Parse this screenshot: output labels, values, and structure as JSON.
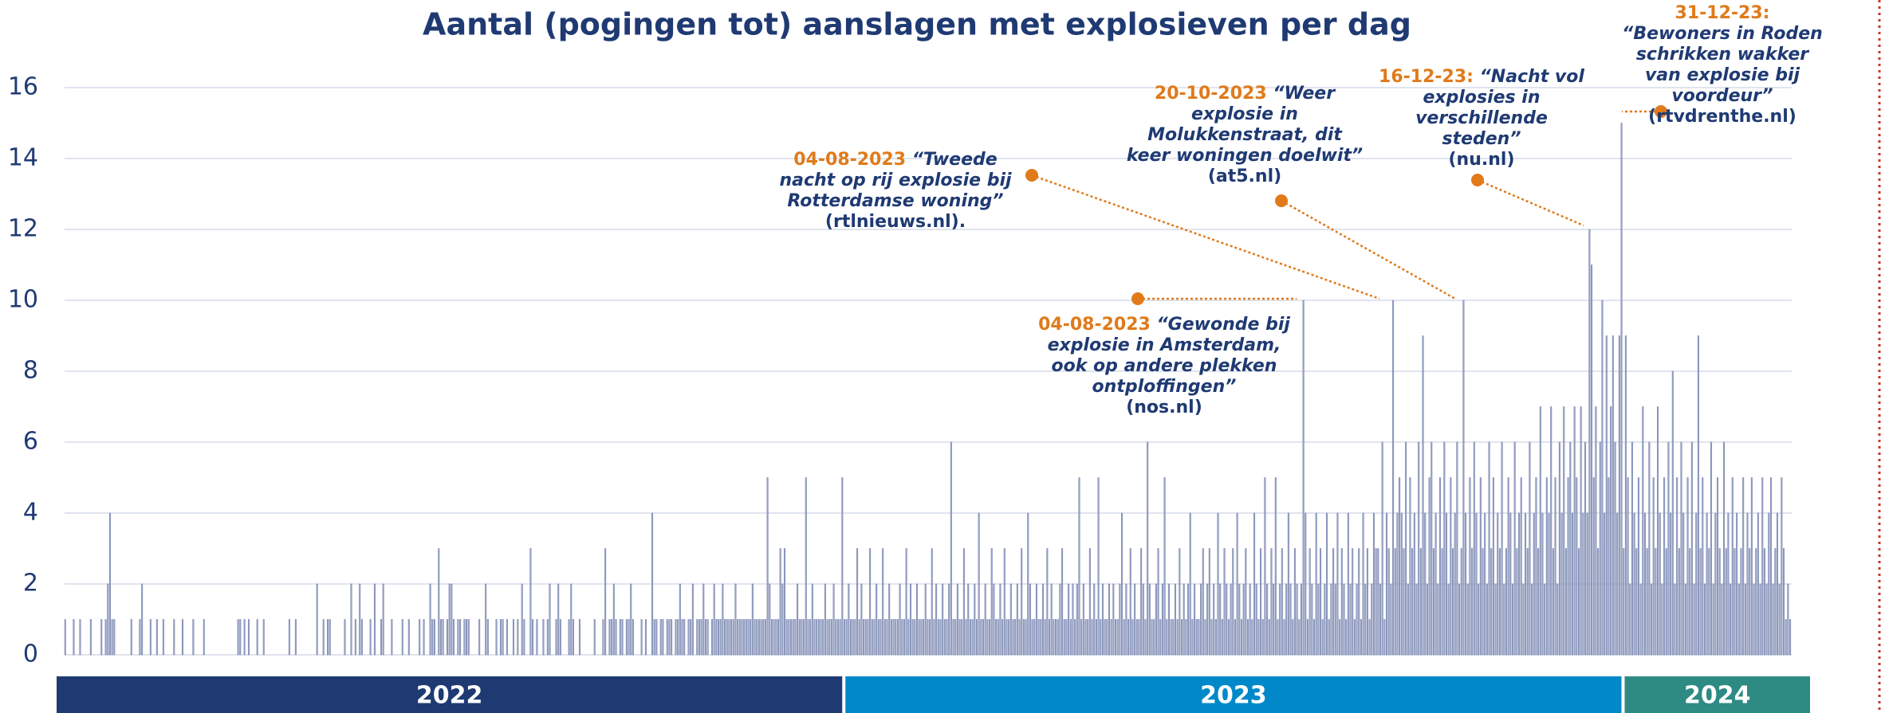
{
  "chart_data": {
    "type": "bar",
    "title": "Aantal (pogingen tot) aanslagen met explosieven per dag",
    "color": "#9aa5c6",
    "ylim": [
      0,
      16
    ],
    "yticks": [
      0,
      2,
      4,
      6,
      8,
      10,
      12,
      14,
      16
    ],
    "grid": true,
    "groups": [
      {
        "label": "2022",
        "color": "#1f3a73",
        "values": [
          1,
          0,
          0,
          0,
          1,
          0,
          0,
          1,
          0,
          0,
          0,
          0,
          1,
          0,
          0,
          0,
          0,
          1,
          0,
          1,
          2,
          4,
          1,
          1,
          0,
          0,
          0,
          0,
          0,
          0,
          0,
          1,
          0,
          0,
          0,
          1,
          2,
          0,
          0,
          0,
          1,
          0,
          0,
          1,
          0,
          0,
          1,
          0,
          0,
          0,
          0,
          1,
          0,
          0,
          0,
          1,
          0,
          0,
          0,
          0,
          1,
          0,
          0,
          0,
          0,
          1,
          0,
          0,
          0,
          0,
          0,
          0,
          0,
          0,
          0,
          0,
          0,
          0,
          0,
          0,
          0,
          1,
          1,
          0,
          1,
          0,
          1,
          0,
          0,
          0,
          1,
          0,
          0,
          1,
          0,
          0,
          0,
          0,
          0,
          0,
          0,
          0,
          0,
          0,
          0,
          1,
          0,
          0,
          1,
          0,
          0,
          0,
          0,
          0,
          0,
          0,
          0,
          0,
          2,
          0,
          0,
          1,
          0,
          1,
          1,
          0,
          0,
          0,
          0,
          0,
          0,
          1,
          0,
          0,
          2,
          0,
          1,
          0,
          2,
          1,
          0,
          0,
          0,
          1,
          0,
          2,
          0,
          0,
          1,
          2,
          0,
          0,
          0,
          1,
          0,
          0,
          0,
          0,
          1,
          0,
          0,
          1,
          0,
          0,
          0,
          0,
          1,
          0,
          1,
          0,
          0,
          2,
          1,
          1,
          0,
          3,
          1,
          1,
          0,
          1,
          2,
          2,
          1,
          0,
          1,
          1,
          0,
          1,
          1,
          1,
          0,
          0,
          0,
          0,
          1,
          0,
          0,
          2,
          1,
          0,
          0,
          0,
          1,
          0,
          1,
          1,
          0,
          1,
          0,
          0,
          1,
          0,
          1,
          0,
          2,
          1,
          0,
          0,
          3,
          1,
          0,
          1,
          0,
          0,
          1,
          0,
          1,
          2,
          0,
          0,
          1,
          2,
          1,
          0,
          0,
          0,
          1,
          2,
          1,
          0,
          0,
          1,
          0,
          0,
          0,
          0,
          0,
          0,
          1,
          0,
          0,
          0,
          1,
          3,
          0,
          1,
          1,
          2,
          1,
          0,
          1,
          1,
          0,
          1,
          1,
          2,
          1,
          0,
          0,
          0,
          1,
          0,
          1,
          0,
          0,
          4,
          1,
          1,
          0,
          1,
          1,
          0,
          1,
          1,
          1,
          0,
          1,
          1,
          2,
          1,
          1,
          0,
          1,
          1,
          2,
          0,
          1,
          1,
          1,
          2,
          1,
          1,
          0,
          1,
          2,
          1,
          1,
          1,
          2,
          1,
          1,
          1,
          1,
          1,
          2,
          1,
          1,
          1,
          1,
          1,
          1,
          1,
          2,
          1,
          1,
          1,
          1,
          1,
          1,
          5,
          2,
          1,
          1,
          1,
          1,
          3,
          2,
          3,
          1,
          1,
          1,
          1,
          1,
          2,
          1,
          1,
          1,
          5,
          1,
          1,
          2,
          1,
          1,
          1,
          1,
          1,
          2,
          1,
          1,
          1,
          2,
          1,
          1,
          1,
          5
        ]
      },
      {
        "label": "2023",
        "color": "#0088c9",
        "values": [
          1,
          1,
          2,
          1,
          1,
          1,
          3,
          1,
          2,
          1,
          1,
          1,
          3,
          1,
          1,
          2,
          1,
          1,
          3,
          1,
          1,
          2,
          1,
          1,
          1,
          1,
          2,
          1,
          1,
          3,
          1,
          2,
          1,
          1,
          2,
          1,
          1,
          1,
          2,
          1,
          1,
          3,
          1,
          2,
          1,
          1,
          2,
          1,
          1,
          2,
          6,
          1,
          1,
          2,
          1,
          1,
          3,
          1,
          2,
          1,
          1,
          2,
          1,
          4,
          1,
          1,
          2,
          1,
          1,
          3,
          2,
          1,
          1,
          2,
          1,
          3,
          1,
          1,
          2,
          1,
          1,
          2,
          1,
          3,
          1,
          1,
          4,
          2,
          1,
          1,
          2,
          1,
          1,
          2,
          1,
          3,
          1,
          2,
          1,
          1,
          1,
          2,
          3,
          1,
          1,
          2,
          1,
          2,
          1,
          2,
          5,
          1,
          2,
          1,
          1,
          3,
          1,
          2,
          1,
          5,
          1,
          2,
          1,
          1,
          2,
          1,
          2,
          1,
          1,
          2,
          4,
          1,
          2,
          1,
          3,
          1,
          2,
          1,
          1,
          3,
          2,
          1,
          6,
          2,
          1,
          1,
          2,
          3,
          1,
          2,
          5,
          1,
          2,
          1,
          1,
          2,
          1,
          3,
          1,
          2,
          1,
          2,
          4,
          1,
          2,
          1,
          1,
          2,
          3,
          1,
          2,
          3,
          1,
          2,
          1,
          4,
          2,
          1,
          3,
          2,
          1,
          2,
          3,
          1,
          4,
          2,
          1,
          2,
          3,
          1,
          2,
          1,
          4,
          2,
          1,
          3,
          1,
          5,
          2,
          1,
          3,
          2,
          5,
          1,
          2,
          3,
          1,
          2,
          4,
          2,
          1,
          3,
          2,
          1,
          2,
          10,
          4,
          1,
          3,
          2,
          1,
          4,
          2,
          3,
          1,
          2,
          4,
          1,
          2,
          3,
          2,
          4,
          1,
          3,
          2,
          1,
          4,
          2,
          3,
          1,
          2,
          3,
          1,
          4,
          2,
          3,
          1,
          2,
          4,
          3,
          3,
          2,
          6,
          1,
          4,
          3,
          2,
          10,
          3,
          4,
          5,
          4,
          3,
          6,
          2,
          5,
          3,
          4,
          2,
          6,
          3,
          9,
          4,
          2,
          5,
          6,
          3,
          4,
          2,
          5,
          3,
          6,
          4,
          2,
          5,
          3,
          4,
          6,
          2,
          3,
          10,
          4,
          2,
          5,
          3,
          6,
          4,
          2,
          5,
          3,
          4,
          2,
          6,
          3,
          5,
          2,
          4,
          3,
          6,
          2,
          3,
          5,
          4,
          2,
          6,
          3,
          4,
          5,
          2,
          4,
          3,
          6,
          2,
          4,
          5,
          3,
          7,
          4,
          2,
          5,
          4,
          7,
          3,
          5,
          2,
          6,
          4,
          7,
          3,
          5,
          6,
          4,
          7,
          5,
          3,
          7,
          4,
          6,
          4,
          12,
          11,
          5,
          7,
          3,
          6,
          10,
          4,
          9,
          5,
          7,
          9,
          6,
          4,
          9,
          15
        ]
      },
      {
        "label": "2024",
        "color": "#2e8b84",
        "values": [
          3,
          9,
          5,
          2,
          6,
          4,
          3,
          5,
          2,
          7,
          4,
          3,
          6,
          2,
          5,
          3,
          7,
          4,
          2,
          5,
          3,
          6,
          4,
          8,
          2,
          5,
          3,
          6,
          4,
          2,
          5,
          3,
          6,
          2,
          4,
          9,
          3,
          5,
          2,
          4,
          3,
          6,
          2,
          4,
          5,
          3,
          2,
          6,
          3,
          4,
          2,
          5,
          3,
          4,
          2,
          3,
          5,
          2,
          4,
          3,
          5,
          2,
          3,
          4,
          2,
          5,
          3,
          2,
          4,
          5,
          2,
          3,
          4,
          2,
          5,
          3,
          1,
          2,
          1
        ]
      }
    ],
    "annotations": [
      {
        "date": "04-08-2023",
        "quote": "“Tweede nacht op rij explosie bij Rotterdamse woning”",
        "source": "(rtlnieuws.nl)."
      },
      {
        "date": "04-08-2023",
        "quote": "“Gewonde bij explosie in Amsterdam, ook op andere plekken ontploffingen”",
        "source": "(nos.nl)"
      },
      {
        "date": "20-10-2023",
        "quote": "“Weer explosie in Molukkenstraat, dit keer woningen doelwit”",
        "source": "(at5.nl)"
      },
      {
        "date": "16-12-23:",
        "quote": "“Nacht vol explosies in verschillende steden”",
        "source": "(nu.nl)"
      },
      {
        "date": "31-12-23:",
        "quote": "“Bewoners in Roden schrikken wakker van explosie bij voordeur”",
        "source": "(rtvdrenthe.nl)"
      }
    ]
  }
}
